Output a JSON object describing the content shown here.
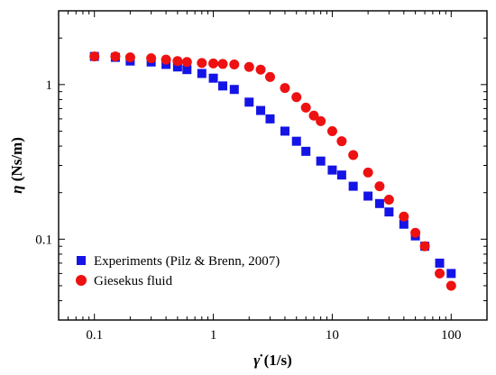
{
  "chart_data": {
    "type": "scatter",
    "xscale": "log",
    "yscale": "log",
    "xlim": [
      0.05,
      200
    ],
    "ylim": [
      0.03,
      3
    ],
    "xlabel_symbol": "γ̇",
    "xlabel_unit": " (1/s)",
    "ylabel_symbol": "η",
    "ylabel_unit": " (Ns/m)",
    "x_ticks": [
      {
        "value": 0.1,
        "label": "0.1"
      },
      {
        "value": 1,
        "label": "1"
      },
      {
        "value": 10,
        "label": "10"
      },
      {
        "value": 100,
        "label": "100"
      }
    ],
    "y_ticks": [
      {
        "value": 0.1,
        "label": "0.1"
      },
      {
        "value": 1,
        "label": "1"
      }
    ],
    "legend_position": "bottom-left",
    "series": [
      {
        "name": "Experiments (Pilz & Brenn, 2007)",
        "marker": "square",
        "color": "#1414e6",
        "x": [
          0.1,
          0.15,
          0.2,
          0.3,
          0.4,
          0.5,
          0.6,
          0.8,
          1.0,
          1.2,
          1.5,
          2.0,
          2.5,
          3.0,
          4.0,
          5.0,
          6.0,
          8.0,
          10.0,
          12.0,
          15.0,
          20.0,
          25.0,
          30.0,
          40.0,
          50.0,
          60.0,
          80.0,
          100.0
        ],
        "y": [
          1.52,
          1.5,
          1.42,
          1.4,
          1.35,
          1.3,
          1.25,
          1.18,
          1.1,
          0.98,
          0.93,
          0.77,
          0.68,
          0.6,
          0.5,
          0.43,
          0.37,
          0.32,
          0.28,
          0.26,
          0.22,
          0.19,
          0.17,
          0.15,
          0.125,
          0.105,
          0.09,
          0.07,
          0.06
        ]
      },
      {
        "name": "Giesekus fluid",
        "marker": "circle",
        "color": "#ee1111",
        "x": [
          0.1,
          0.15,
          0.2,
          0.3,
          0.4,
          0.5,
          0.6,
          0.8,
          1.0,
          1.2,
          1.5,
          2.0,
          2.5,
          3.0,
          4.0,
          5.0,
          6.0,
          7.0,
          8.0,
          10.0,
          12.0,
          15.0,
          20.0,
          25.0,
          30.0,
          40.0,
          50.0,
          60.0,
          80.0,
          100.0
        ],
        "y": [
          1.52,
          1.52,
          1.5,
          1.48,
          1.45,
          1.42,
          1.4,
          1.38,
          1.37,
          1.36,
          1.35,
          1.3,
          1.25,
          1.12,
          0.95,
          0.83,
          0.71,
          0.63,
          0.58,
          0.5,
          0.43,
          0.35,
          0.27,
          0.22,
          0.18,
          0.14,
          0.11,
          0.09,
          0.06,
          0.05
        ]
      }
    ]
  }
}
